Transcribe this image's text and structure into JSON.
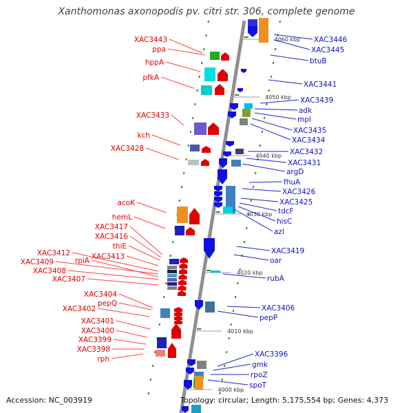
{
  "title": "Xanthomonas axonopodis pv. citri str. 306, complete genome",
  "accession": "Accession: NC_003919",
  "summary": "Topology: circular; Length: 5,175,554 bp; Genes: 4,373",
  "colors": {
    "left_label": "#e00000",
    "right_label": "#1010c0",
    "backbone": "#909090",
    "tick": "#2a8a2a"
  },
  "position_markers": [
    "4060 kbp",
    "4050 kbp",
    "4040 kbp",
    "4030 kbp",
    "4020 kbp",
    "4010 kbp",
    "4000 kbp"
  ],
  "left_genes": [
    "XAC3443",
    "ppa",
    "hppA",
    "pfkA",
    "XAC3433",
    "kch",
    "XAC3428",
    "acoK",
    "hemL",
    "XAC3417",
    "XAC3416",
    "thiE",
    "XAC3412",
    "XAC3413",
    "XAC3409",
    "rpiA",
    "XAC3408",
    "XAC3407",
    "XAC3404",
    "pepQ",
    "XAC3402",
    "XAC3401",
    "XAC3400",
    "XAC3399",
    "XAC3398",
    "rph"
  ],
  "right_genes": [
    "XAC3446",
    "XAC3445",
    "btuB",
    "XAC3441",
    "XAC3439",
    "adk",
    "mpl",
    "XAC3435",
    "XAC3434",
    "XAC3432",
    "XAC3431",
    "argD",
    "fhuA",
    "XAC3426",
    "XAC3425",
    "tdcF",
    "hisC",
    "azl",
    "XAC3419",
    "oar",
    "rubA",
    "XAC3406",
    "pepP",
    "XAC3396",
    "gmk",
    "rpoZ",
    "spoT"
  ]
}
